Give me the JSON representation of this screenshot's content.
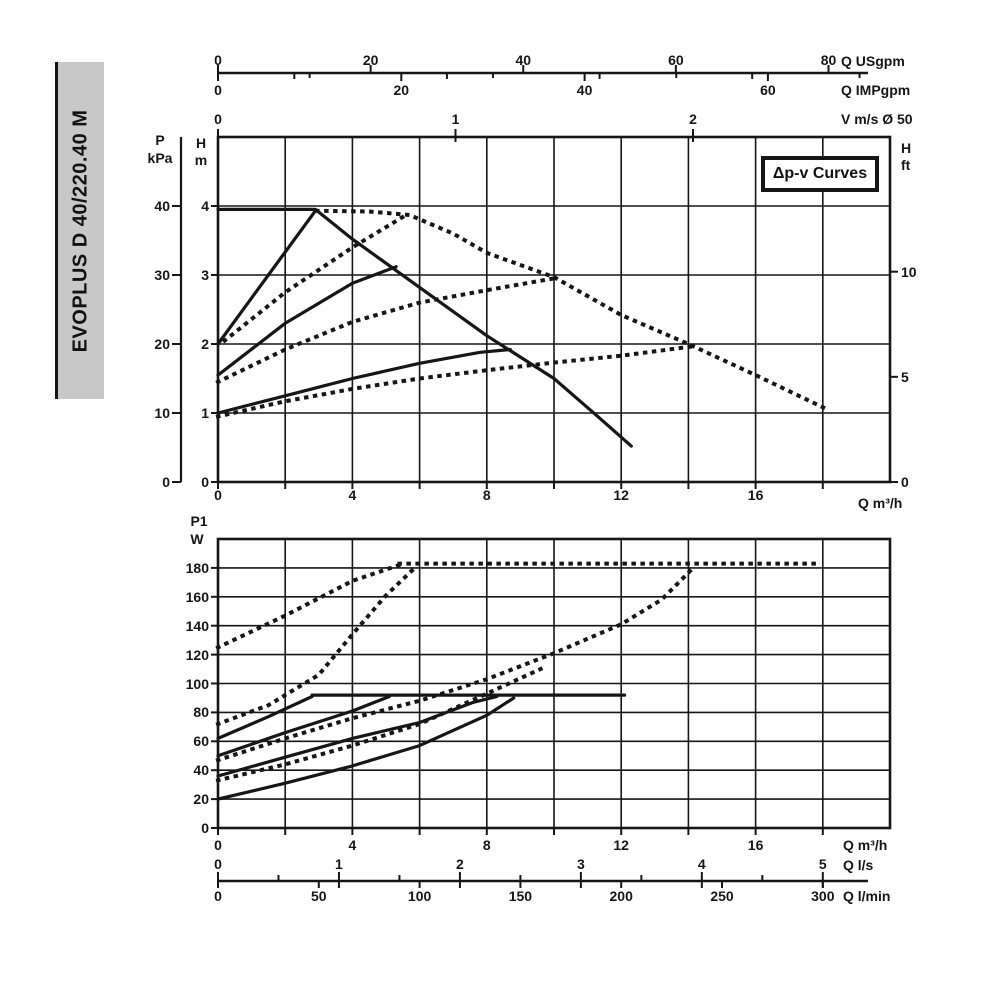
{
  "sidebar": {
    "label": "EVOPLUS D 40/220.40 M"
  },
  "legend": {
    "label": "Δp-v Curves"
  },
  "labels": {
    "p": "P",
    "kpa": "kPa",
    "h_m_1": "H",
    "h_m_2": "m",
    "h_ft_1": "H",
    "h_ft_2": "ft",
    "q_usgpm": "Q USgpm",
    "q_impgpm": "Q IMPgpm",
    "v_ms": "V m/s Ø 50",
    "q_m3h_top": "Q m³/h",
    "p1": "P1",
    "w": "W",
    "q_m3h_bottom": "Q m³/h",
    "q_ls": "Q l/s",
    "q_lmin": "Q l/min"
  },
  "colors": {
    "ink": "#161616",
    "grid": "#262626",
    "sidebar_bg": "#c8c8c8",
    "bg": "#ffffff"
  },
  "chart_data": [
    {
      "type": "line",
      "title": "Head vs flow with Δp-v curves (solid = single pump, dotted = parallel operation)",
      "xlabel": "Q m³/h",
      "ylabel": "H m",
      "xlim": [
        0,
        20
      ],
      "ylim": [
        0,
        5
      ],
      "x_gridstep": 2,
      "y_gridstep": 1,
      "grid": true,
      "axes": {
        "p_kpa": {
          "name": "P kPa",
          "ticks": [
            0,
            10,
            20,
            30,
            40
          ],
          "m_per_unit": 0.1
        },
        "h_m": {
          "name": "H m",
          "ticks": [
            0,
            1,
            2,
            3,
            4
          ]
        },
        "h_ft": {
          "name": "H ft",
          "ticks": [
            0,
            5,
            10
          ],
          "m_per_unit": 0.3048
        },
        "q_usgpm": {
          "name": "Q USgpm",
          "ticks": [
            0,
            20,
            40,
            60,
            80
          ],
          "minor": [
            10,
            30,
            50,
            70
          ],
          "m3h_per_unit": 0.22712
        },
        "q_impgpm": {
          "name": "Q IMPgpm",
          "ticks": [
            0,
            20,
            40,
            60
          ],
          "minor": [
            10,
            30,
            50,
            70
          ],
          "m3h_per_unit": 0.27277
        },
        "v_ms": {
          "name": "V m/s Ø 50",
          "ticks": [
            0,
            1,
            2
          ],
          "m3h_per_unit": 7.0686
        },
        "q_m3h": {
          "name": "Q m³/h",
          "ticks": [
            0,
            4,
            8,
            12,
            16
          ]
        }
      },
      "series": [
        {
          "name": "max-curve-single",
          "style": "solid",
          "points": [
            [
              0,
              3.95
            ],
            [
              2.9,
              3.95
            ],
            [
              4,
              3.52
            ],
            [
              6,
              2.82
            ],
            [
              8,
              2.12
            ],
            [
              10,
              1.5
            ],
            [
              11.3,
              0.95
            ],
            [
              12.3,
              0.52
            ]
          ]
        },
        {
          "name": "dpv-set4-single",
          "style": "solid",
          "points": [
            [
              0,
              2.0
            ],
            [
              1.5,
              3.0
            ],
            [
              2.9,
              3.93
            ]
          ]
        },
        {
          "name": "dpv-set3-single",
          "style": "solid",
          "points": [
            [
              0,
              1.55
            ],
            [
              2,
              2.3
            ],
            [
              4,
              2.88
            ],
            [
              5.3,
              3.12
            ]
          ]
        },
        {
          "name": "dpv-set2-single",
          "style": "solid",
          "points": [
            [
              0,
              1.0
            ],
            [
              2,
              1.25
            ],
            [
              4,
              1.5
            ],
            [
              6,
              1.72
            ],
            [
              7.8,
              1.88
            ],
            [
              8.7,
              1.92
            ]
          ]
        },
        {
          "name": "max-curve-parallel",
          "style": "dotted",
          "points": [
            [
              2.95,
              3.93
            ],
            [
              4.5,
              3.92
            ],
            [
              5.7,
              3.87
            ],
            [
              7,
              3.6
            ],
            [
              8,
              3.32
            ],
            [
              10,
              2.97
            ],
            [
              12,
              2.42
            ],
            [
              14,
              2.0
            ],
            [
              16,
              1.55
            ],
            [
              18.1,
              1.06
            ]
          ]
        },
        {
          "name": "dpv-set4-parallel",
          "style": "dotted",
          "points": [
            [
              0.2,
              2.05
            ],
            [
              2,
              2.75
            ],
            [
              4,
              3.4
            ],
            [
              5.5,
              3.84
            ]
          ]
        },
        {
          "name": "dpv-set3-parallel",
          "style": "dotted",
          "points": [
            [
              0,
              1.45
            ],
            [
              2,
              1.92
            ],
            [
              4,
              2.32
            ],
            [
              6,
              2.6
            ],
            [
              8,
              2.78
            ],
            [
              10,
              2.95
            ]
          ]
        },
        {
          "name": "dpv-set2-parallel",
          "style": "dotted",
          "points": [
            [
              0,
              0.95
            ],
            [
              2,
              1.17
            ],
            [
              4,
              1.35
            ],
            [
              6,
              1.5
            ],
            [
              8,
              1.62
            ],
            [
              10,
              1.73
            ],
            [
              12,
              1.83
            ],
            [
              14.2,
              1.97
            ]
          ]
        }
      ]
    },
    {
      "type": "line",
      "title": "Power input P1 vs flow (solid = single pump, dotted = parallel operation)",
      "xlabel": "Q m³/h",
      "ylabel": "P1 W",
      "xlim": [
        0,
        20
      ],
      "ylim": [
        0,
        200
      ],
      "x_gridstep": 2,
      "y_gridstep": 20,
      "grid": true,
      "axes": {
        "p1_w": {
          "name": "P1 W",
          "ticks": [
            0,
            20,
            40,
            60,
            80,
            100,
            120,
            140,
            160,
            180
          ]
        },
        "q_m3h": {
          "name": "Q m³/h",
          "ticks": [
            0,
            4,
            8,
            12,
            16
          ]
        },
        "q_ls": {
          "name": "Q l/s",
          "ticks": [
            0,
            1,
            2,
            3,
            4,
            5
          ],
          "minor": [
            0.5,
            1.5,
            2.5,
            3.5,
            4.5
          ],
          "m3h_per_unit": 3.6
        },
        "q_lmin": {
          "name": "Q l/min",
          "ticks": [
            0,
            50,
            100,
            150,
            200,
            250,
            300
          ],
          "m3h_per_unit": 0.06
        }
      },
      "series": [
        {
          "name": "max-power-single",
          "style": "solid",
          "points": [
            [
              2.8,
              92
            ],
            [
              12.1,
              92
            ]
          ]
        },
        {
          "name": "power-set4-single",
          "style": "solid",
          "points": [
            [
              0,
              62
            ],
            [
              1.5,
              77
            ],
            [
              2.8,
              91
            ]
          ]
        },
        {
          "name": "power-set3-single",
          "style": "solid",
          "points": [
            [
              0,
              50
            ],
            [
              2,
              66
            ],
            [
              4,
              81
            ],
            [
              5.1,
              91
            ]
          ]
        },
        {
          "name": "power-set2b-single",
          "style": "solid",
          "points": [
            [
              0,
              36
            ],
            [
              2,
              49
            ],
            [
              4,
              62
            ],
            [
              6,
              73
            ],
            [
              7.6,
              87
            ],
            [
              8.3,
              91
            ]
          ]
        },
        {
          "name": "power-set2-single",
          "style": "solid",
          "points": [
            [
              0,
              20
            ],
            [
              2,
              31
            ],
            [
              4,
              43
            ],
            [
              6,
              57
            ],
            [
              8,
              78
            ],
            [
              8.8,
              90
            ]
          ]
        },
        {
          "name": "max-power-parallel",
          "style": "dotted",
          "points": [
            [
              5.4,
              183
            ],
            [
              17.8,
              183
            ]
          ]
        },
        {
          "name": "power-set4-parallel",
          "style": "dotted",
          "points": [
            [
              0,
              125
            ],
            [
              2,
              147
            ],
            [
              4,
              171
            ],
            [
              5.4,
              182
            ]
          ]
        },
        {
          "name": "power-set3-parallel",
          "style": "dotted",
          "points": [
            [
              0,
              72
            ],
            [
              1.5,
              85
            ],
            [
              3,
              106
            ],
            [
              4,
              134
            ],
            [
              5,
              161
            ],
            [
              5.9,
              181
            ]
          ]
        },
        {
          "name": "power-set2b-parallel",
          "style": "dotted",
          "points": [
            [
              0,
              47
            ],
            [
              2,
              62
            ],
            [
              4,
              76
            ],
            [
              6,
              88
            ],
            [
              8,
              103
            ],
            [
              10,
              121
            ],
            [
              12,
              141
            ],
            [
              13.2,
              158
            ],
            [
              14.1,
              179
            ]
          ]
        },
        {
          "name": "power-set2-parallel",
          "style": "dotted",
          "points": [
            [
              0,
              33
            ],
            [
              2,
              44
            ],
            [
              4,
              57
            ],
            [
              6,
              72
            ],
            [
              8,
              93
            ],
            [
              9.6,
              110
            ]
          ]
        }
      ]
    }
  ]
}
